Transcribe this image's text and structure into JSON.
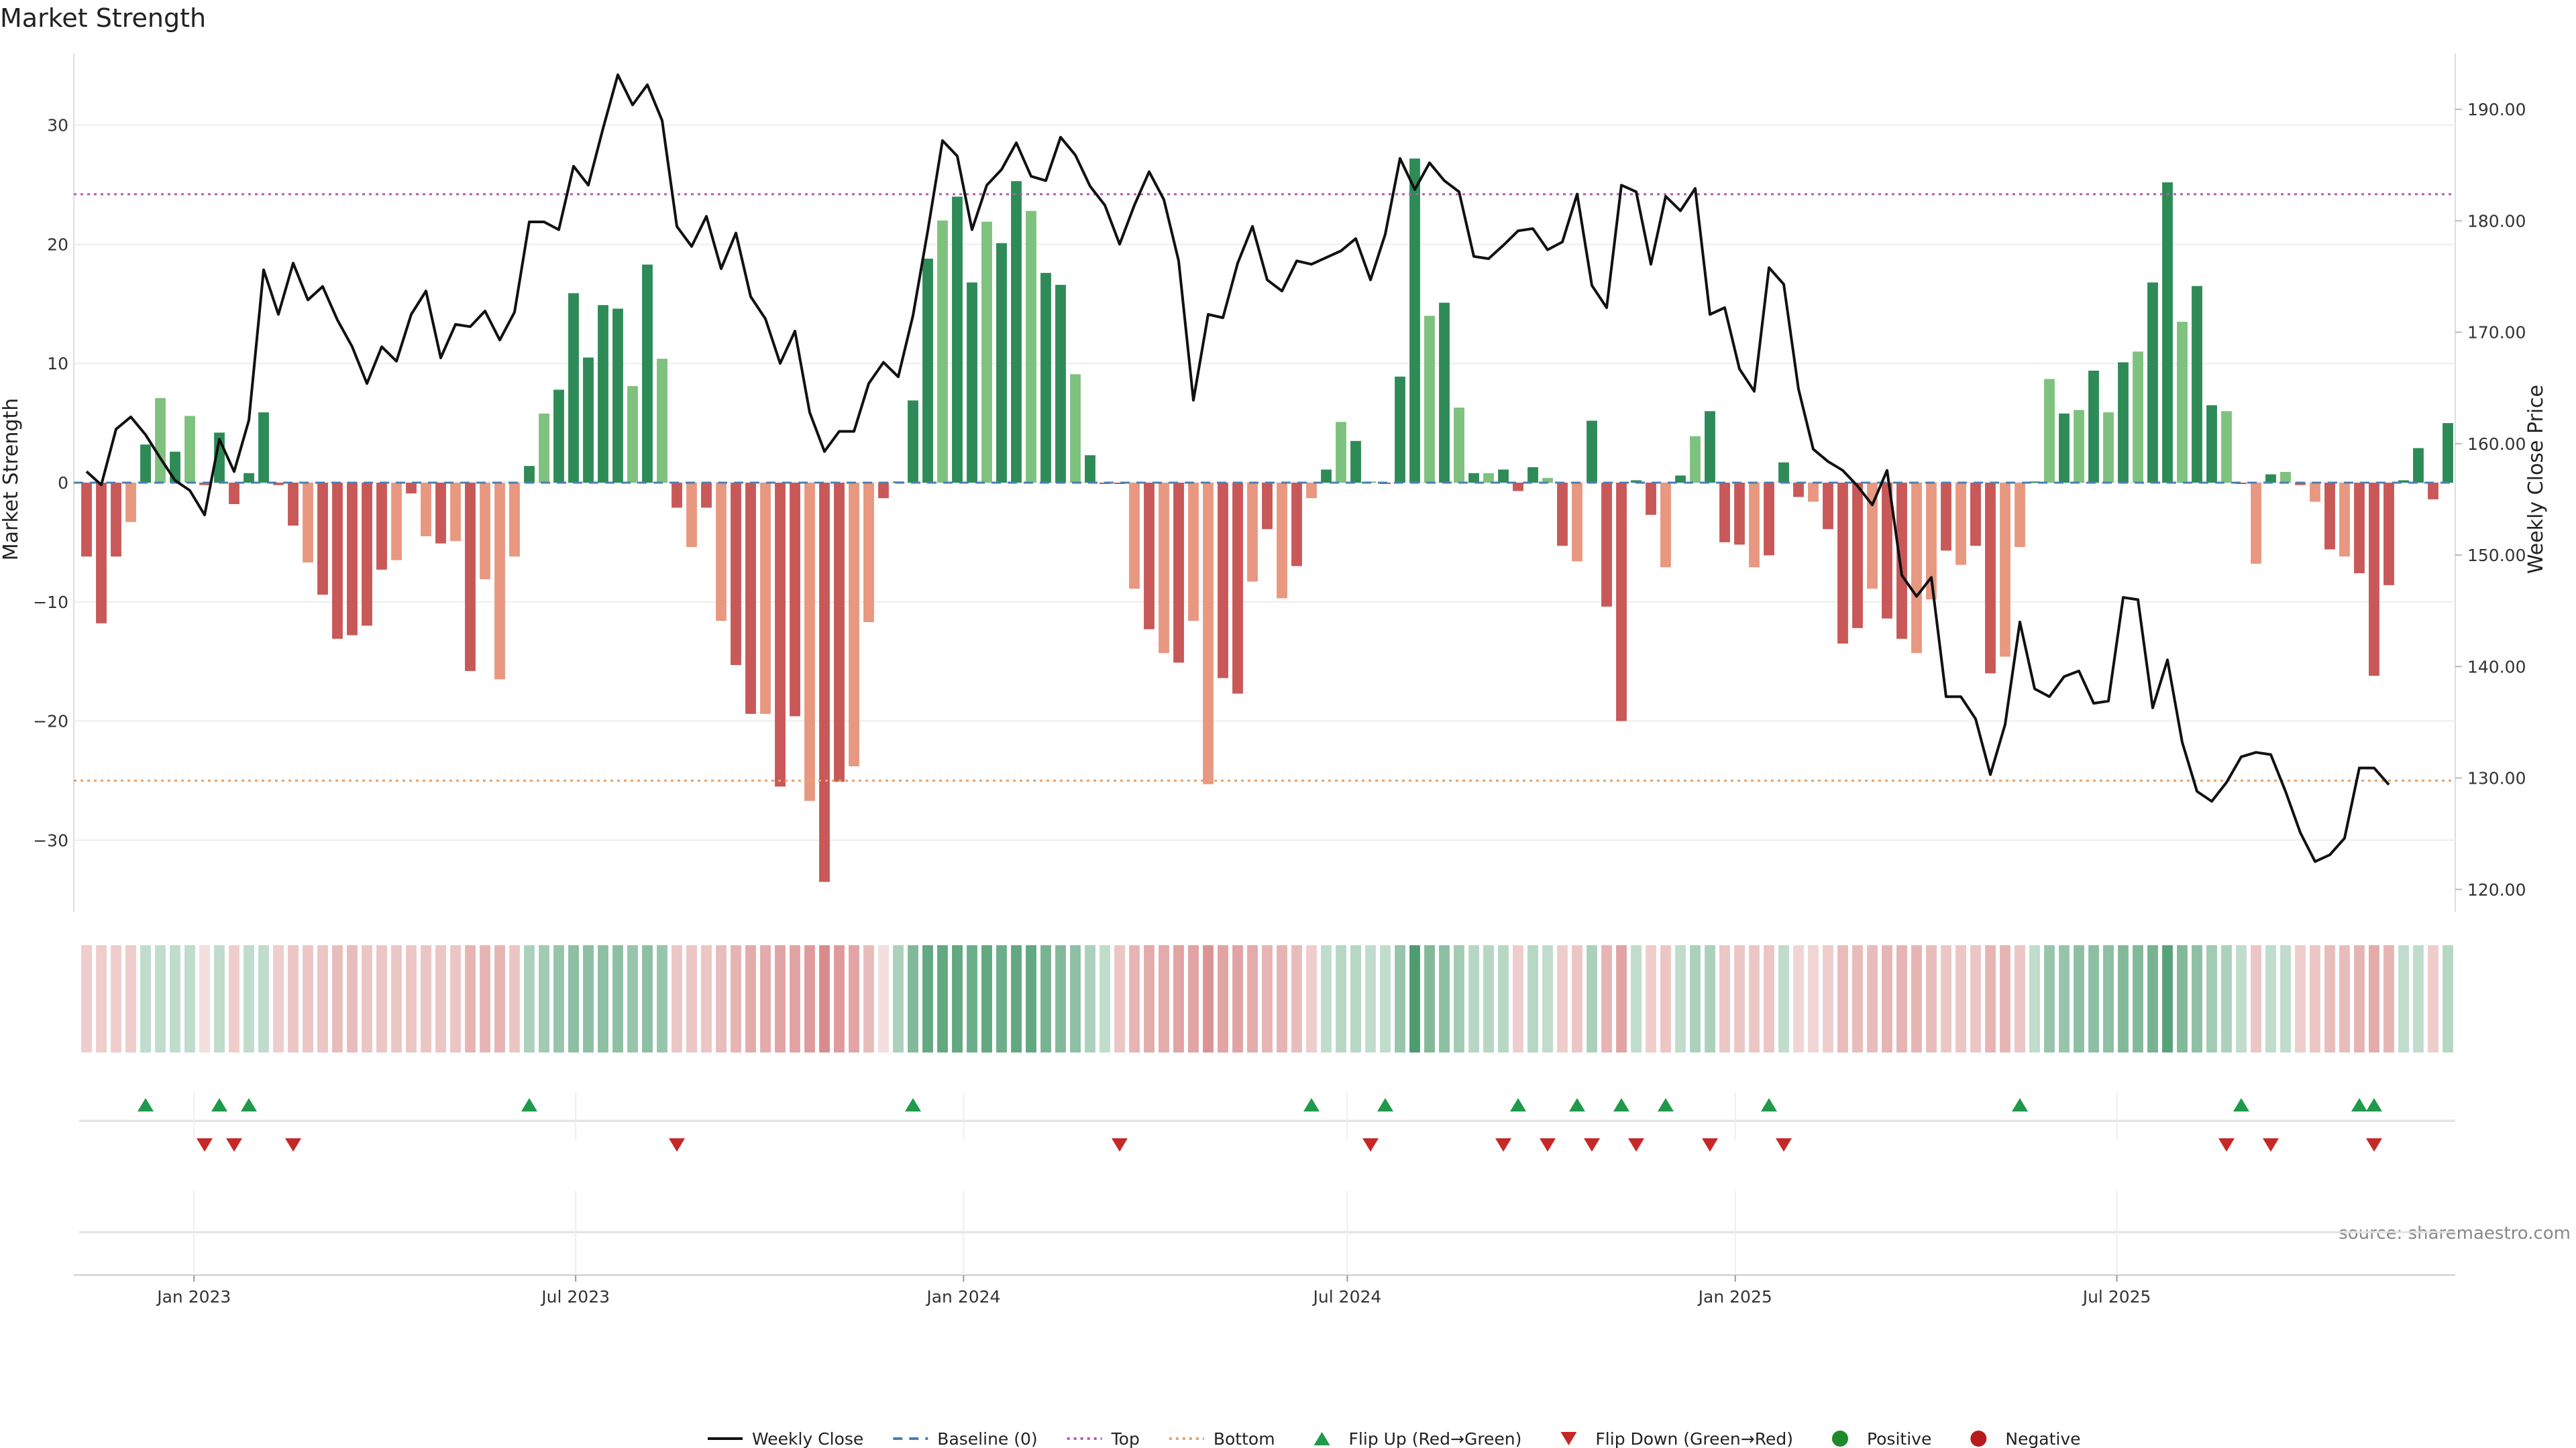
{
  "chart_data": {
    "type": "bar",
    "title": "Market Strength",
    "ylabel_left": "Market Strength",
    "ylabel_right": "Weekly Close Price",
    "ylim_left": [
      -36,
      36
    ],
    "ylim_right": [
      118,
      195
    ],
    "yticks_left": [
      30,
      20,
      10,
      0,
      -10,
      -20,
      -30
    ],
    "yticks_left_labels": [
      "30",
      "20",
      "10",
      "0",
      "−10",
      "−20",
      "−30"
    ],
    "yticks_right": [
      190,
      180,
      170,
      160,
      150,
      140,
      130,
      120
    ],
    "yticks_right_labels": [
      "190.00",
      "180.00",
      "170.00",
      "160.00",
      "150.00",
      "140.00",
      "130.00",
      "120.00"
    ],
    "x_start": "2022-11-11",
    "x_step_days": 7,
    "x_ticks": [
      {
        "date": "2023-01-01",
        "label": "Jan 2023"
      },
      {
        "date": "2023-07-01",
        "label": "Jul 2023"
      },
      {
        "date": "2024-01-01",
        "label": "Jan 2024"
      },
      {
        "date": "2024-07-01",
        "label": "Jul 2024"
      },
      {
        "date": "2025-01-01",
        "label": "Jan 2025"
      },
      {
        "date": "2025-07-01",
        "label": "Jul 2025"
      }
    ],
    "top_level": 24.2,
    "bottom_level": -25.0,
    "strength": [
      -6.2,
      -11.8,
      -6.2,
      -3.3,
      3.2,
      7.1,
      2.6,
      5.6,
      -0.2,
      4.2,
      -1.8,
      0.8,
      5.9,
      -0.2,
      -3.6,
      -6.7,
      -9.4,
      -13.1,
      -12.8,
      -12.0,
      -7.3,
      -6.5,
      -0.9,
      -4.5,
      -5.1,
      -4.9,
      -15.8,
      -8.1,
      -16.5,
      -6.2,
      1.4,
      5.8,
      7.8,
      15.9,
      10.5,
      14.9,
      14.6,
      8.1,
      18.3,
      10.4,
      -2.1,
      -5.4,
      -2.1,
      -11.6,
      -15.3,
      -19.4,
      -19.4,
      -25.5,
      -19.6,
      -26.7,
      -33.5,
      -25.1,
      -23.8,
      -11.7,
      -1.3,
      0.1,
      6.9,
      18.8,
      22.0,
      24.0,
      16.8,
      21.9,
      20.1,
      25.3,
      22.8,
      17.6,
      16.6,
      9.1,
      2.3,
      -0.1,
      -0.1,
      -8.9,
      -12.3,
      -14.3,
      -15.1,
      -11.6,
      -25.3,
      -16.4,
      -17.7,
      -8.3,
      -3.9,
      -9.7,
      -7.0,
      -1.3,
      1.1,
      5.1,
      3.5,
      0.1,
      -0.1,
      8.9,
      27.2,
      14.0,
      15.1,
      6.3,
      0.8,
      0.8,
      1.1,
      -0.7,
      1.3,
      0.4,
      -5.3,
      -6.6,
      5.2,
      -10.4,
      -20.0,
      0.2,
      -2.7,
      -7.1,
      0.6,
      3.9,
      6.0,
      -5.0,
      -5.2,
      -7.1,
      -6.1,
      1.7,
      -1.2,
      -1.6,
      -3.9,
      -13.5,
      -12.2,
      -8.9,
      -11.4,
      -13.1,
      -14.3,
      -9.8,
      -5.7,
      -6.9,
      -5.3,
      -16.0,
      -14.6,
      -5.4,
      0.1,
      8.7,
      5.8,
      6.1,
      9.4,
      5.9,
      10.1,
      11.0,
      16.8,
      25.2,
      13.5,
      16.5,
      6.5,
      6.0,
      -0.1,
      -6.8,
      0.7,
      0.9,
      -0.2,
      -1.6,
      -5.6,
      -6.2,
      -7.6,
      -16.2,
      -8.6,
      0.2,
      2.9,
      -1.4,
      5.0
    ],
    "close": [
      157.5,
      156.3,
      161.3,
      162.4,
      160.8,
      158.7,
      156.7,
      155.8,
      153.6,
      160.4,
      157.5,
      162.1,
      175.6,
      171.6,
      176.2,
      172.9,
      174.1,
      171.1,
      168.7,
      165.4,
      168.7,
      167.4,
      171.6,
      173.7,
      167.7,
      170.7,
      170.5,
      171.9,
      169.3,
      171.8,
      179.9,
      179.9,
      179.2,
      184.9,
      183.2,
      188.3,
      193.1,
      190.4,
      192.2,
      189.0,
      179.5,
      177.7,
      180.4,
      175.7,
      178.9,
      173.2,
      171.2,
      167.2,
      170.1,
      162.8,
      159.3,
      161.1,
      161.1,
      165.4,
      167.3,
      166.0,
      171.5,
      179.1,
      187.2,
      185.8,
      179.2,
      183.2,
      184.6,
      187.0,
      184.0,
      183.6,
      187.5,
      185.9,
      183.1,
      181.4,
      177.9,
      181.4,
      184.4,
      181.9,
      176.4,
      163.9,
      171.6,
      171.3,
      176.2,
      179.5,
      174.7,
      173.7,
      176.4,
      176.1,
      176.7,
      177.3,
      178.4,
      174.7,
      178.8,
      185.6,
      182.8,
      185.2,
      183.6,
      182.6,
      176.8,
      176.6,
      177.8,
      179.1,
      179.3,
      177.4,
      178.1,
      182.4,
      174.2,
      172.2,
      183.2,
      182.6,
      176.1,
      182.2,
      180.9,
      182.9,
      171.6,
      172.2,
      166.7,
      164.7,
      175.8,
      174.3,
      164.9,
      159.5,
      158.4,
      157.6,
      156.2,
      154.5,
      157.6,
      148.2,
      146.3,
      148.0,
      137.3,
      137.3,
      135.3,
      130.3,
      134.8,
      144.0,
      138.0,
      137.3,
      139.1,
      139.6,
      136.7,
      136.9,
      146.2,
      146.0,
      136.3,
      140.6,
      133.2,
      128.8,
      127.9,
      129.6,
      131.9,
      132.3,
      132.1,
      128.8,
      125.1,
      122.5,
      123.1,
      124.6,
      130.9,
      130.9,
      129.4
    ],
    "heat": [
      -0.3,
      -0.3,
      -0.3,
      -0.3,
      0.3,
      0.3,
      0.3,
      0.3,
      -0.2,
      0.3,
      -0.3,
      0.3,
      0.3,
      -0.3,
      -0.35,
      -0.35,
      -0.35,
      -0.4,
      -0.4,
      -0.35,
      -0.35,
      -0.35,
      -0.35,
      -0.35,
      -0.35,
      -0.35,
      -0.45,
      -0.45,
      -0.45,
      -0.35,
      0.4,
      0.45,
      0.5,
      0.55,
      0.55,
      0.55,
      0.55,
      0.5,
      0.55,
      0.5,
      -0.35,
      -0.35,
      -0.35,
      -0.4,
      -0.45,
      -0.5,
      -0.5,
      -0.55,
      -0.55,
      -0.6,
      -0.7,
      -0.6,
      -0.55,
      -0.4,
      -0.2,
      0.4,
      0.6,
      0.75,
      0.75,
      0.75,
      0.7,
      0.75,
      0.7,
      0.75,
      0.75,
      0.65,
      0.6,
      0.55,
      0.4,
      0.3,
      -0.35,
      -0.45,
      -0.5,
      -0.5,
      -0.55,
      -0.55,
      -0.65,
      -0.55,
      -0.55,
      -0.5,
      -0.45,
      -0.45,
      -0.4,
      -0.3,
      0.3,
      0.35,
      0.35,
      0.3,
      0.3,
      0.5,
      0.85,
      0.6,
      0.55,
      0.45,
      0.35,
      0.35,
      0.35,
      -0.3,
      0.35,
      0.3,
      -0.3,
      -0.35,
      0.4,
      -0.45,
      -0.55,
      0.3,
      -0.3,
      -0.35,
      0.3,
      0.4,
      0.4,
      -0.35,
      -0.35,
      -0.35,
      -0.35,
      0.3,
      -0.25,
      -0.25,
      -0.3,
      -0.4,
      -0.4,
      -0.4,
      -0.45,
      -0.45,
      -0.45,
      -0.4,
      -0.35,
      -0.35,
      -0.35,
      -0.45,
      -0.45,
      -0.35,
      0.3,
      0.5,
      0.5,
      0.55,
      0.55,
      0.55,
      0.6,
      0.6,
      0.65,
      0.8,
      0.6,
      0.55,
      0.45,
      0.4,
      0.3,
      -0.35,
      0.3,
      0.3,
      -0.3,
      -0.35,
      -0.4,
      -0.4,
      -0.45,
      -0.5,
      -0.45,
      0.3,
      0.3,
      -0.3,
      0.35
    ],
    "flip_up_weeks": [
      4,
      9,
      11,
      30,
      56,
      83,
      88,
      97,
      101,
      104,
      107,
      114,
      131,
      146,
      154,
      155
    ],
    "flip_down_weeks": [
      8,
      10,
      14,
      40,
      70,
      87,
      96,
      99,
      102,
      105,
      110,
      115,
      145,
      148,
      155
    ],
    "colors": {
      "green_dark": "#2e8b57",
      "green_light": "#7fc17f",
      "red_dark": "#c95858",
      "red_light": "#e89880",
      "line": "#111111",
      "top": "#b05fb0",
      "bottom": "#e6a36a",
      "baseline": "#4a7fb0",
      "flip_up": "#1e9a4a",
      "flip_down": "#c62828",
      "positive": "#1e8a2a",
      "negative": "#b71c1c"
    },
    "legend": [
      {
        "label": "Weekly Close",
        "kind": "line"
      },
      {
        "label": "Baseline (0)",
        "kind": "dash"
      },
      {
        "label": "Top",
        "kind": "dot-top"
      },
      {
        "label": "Bottom",
        "kind": "dot-bottom"
      },
      {
        "label": "Flip Up (Red→Green)",
        "kind": "tri-up"
      },
      {
        "label": "Flip Down (Green→Red)",
        "kind": "tri-down"
      },
      {
        "label": "Positive",
        "kind": "circle-pos"
      },
      {
        "label": "Negative",
        "kind": "circle-neg"
      }
    ],
    "legend_position": "bottom-center",
    "source": "source: sharemaestro.com"
  }
}
